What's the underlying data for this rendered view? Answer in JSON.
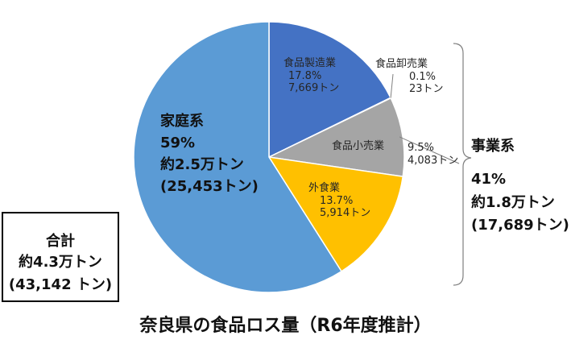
{
  "chart_data": {
    "type": "pie",
    "title": "奈良県の食品ロス量（R6年度推計）",
    "slices": [
      {
        "name": "食品製造業",
        "percent": "17.8%",
        "amount": "7,669トン",
        "value": 7669,
        "color": "#4472c4"
      },
      {
        "name": "食品卸売業",
        "percent": "0.1%",
        "amount": "23トン",
        "value": 23,
        "color": "#4472c4"
      },
      {
        "name": "食品小売業",
        "percent": "9.5%",
        "amount": "4,083トン",
        "value": 4083,
        "color": "#a5a5a5"
      },
      {
        "name": "外食業",
        "percent": "13.7%",
        "amount": "5,914トン",
        "value": 5914,
        "color": "#ffc000"
      },
      {
        "name": "家庭系",
        "percent": "59%",
        "amount": "約2.5万トン",
        "amount_exact": "(25,453トン)",
        "value": 25453,
        "color": "#5b9bd5"
      }
    ],
    "group": {
      "name": "事業系",
      "percent": "41%",
      "amount": "約1.8万トン",
      "amount_exact": "(17,689トン)"
    },
    "total": {
      "label": "合計",
      "amount": "約4.3万トン",
      "amount_exact": "(43,142 トン)"
    }
  }
}
